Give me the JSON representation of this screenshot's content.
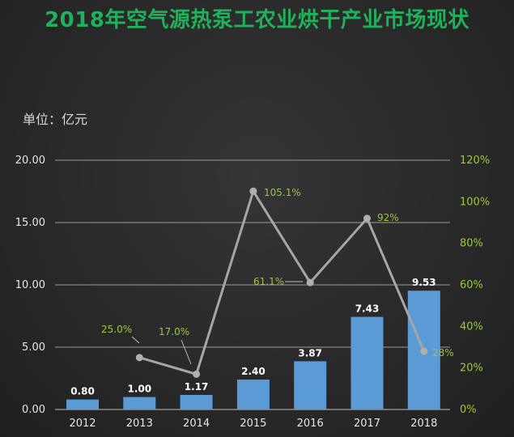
{
  "chart_data": {
    "type": "bar",
    "title": "2018年空气源热泵工农业烘干产业市场现状",
    "unit_label": "单位：亿元",
    "categories": [
      "2012",
      "2013",
      "2014",
      "2015",
      "2016",
      "2017",
      "2018"
    ],
    "series": [
      {
        "type": "bar",
        "axis": "left",
        "values": [
          0.8,
          1.0,
          1.17,
          2.4,
          3.87,
          7.43,
          9.53
        ],
        "labels": [
          "0.80",
          "1.00",
          "1.17",
          "2.40",
          "3.87",
          "7.43",
          "9.53"
        ]
      },
      {
        "type": "line",
        "axis": "right",
        "values": [
          null,
          25.0,
          17.0,
          105.1,
          61.1,
          92,
          28
        ],
        "labels": [
          null,
          "25.0%",
          "17.0%",
          "105.1%",
          "61.1%",
          "92%",
          "28%"
        ]
      }
    ],
    "ylim": [
      0,
      20
    ],
    "y_ticks": [
      "0.00",
      "5.00",
      "10.00",
      "15.00",
      "20.00"
    ],
    "y2lim": [
      0,
      120
    ],
    "y2_ticks": [
      "0%",
      "20%",
      "40%",
      "60%",
      "80%",
      "100%",
      "120%"
    ],
    "grid": true,
    "colors": {
      "bar": "#5b9bd5",
      "line": "#a6a6a6",
      "title": "#1fb25a",
      "right_axis": "#9bc83c"
    }
  }
}
